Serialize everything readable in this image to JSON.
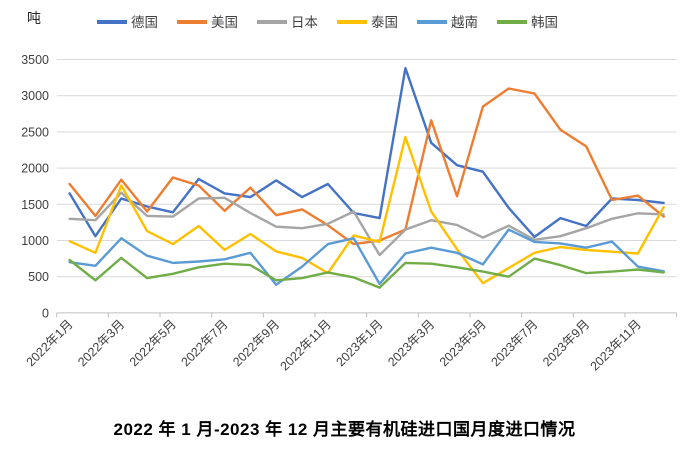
{
  "unit_label": "吨",
  "title": "2022 年 1 月-2023 年 12 月主要有机硅进口国月度进口情况",
  "chart_data": {
    "type": "line",
    "title": "2022 年 1 月-2023 年 12 月主要有机硅进口国月度进口情况",
    "ylabel": "吨",
    "ylim": [
      0,
      3500
    ],
    "y_step": 500,
    "grid": true,
    "legend_position": "top",
    "x_labels_every": 2,
    "categories": [
      "2022年1月",
      "2022年2月",
      "2022年3月",
      "2022年4月",
      "2022年5月",
      "2022年6月",
      "2022年7月",
      "2022年8月",
      "2022年9月",
      "2022年10月",
      "2022年11月",
      "2022年12月",
      "2023年1月",
      "2023年2月",
      "2023年3月",
      "2023年4月",
      "2023年5月",
      "2023年6月",
      "2023年7月",
      "2023年8月",
      "2023年9月",
      "2023年10月",
      "2023年11月",
      "2023年12月"
    ],
    "series": [
      {
        "id": "germany",
        "name": "德国",
        "color": "#4472C4",
        "values": [
          1650,
          1060,
          1580,
          1470,
          1390,
          1850,
          1650,
          1600,
          1830,
          1600,
          1780,
          1380,
          1310,
          3380,
          2350,
          2040,
          1950,
          1450,
          1050,
          1310,
          1200,
          1580,
          1560,
          1520
        ]
      },
      {
        "id": "usa",
        "name": "美国",
        "color": "#ED7D31",
        "values": [
          1780,
          1340,
          1840,
          1400,
          1870,
          1760,
          1410,
          1730,
          1350,
          1430,
          1210,
          950,
          1000,
          1150,
          2660,
          1610,
          2850,
          3100,
          3030,
          2530,
          2300,
          1560,
          1620,
          1330
        ]
      },
      {
        "id": "japan",
        "name": "日本",
        "color": "#A5A5A5",
        "values": [
          1300,
          1280,
          1660,
          1340,
          1330,
          1580,
          1590,
          1380,
          1190,
          1170,
          1230,
          1400,
          800,
          1150,
          1280,
          1215,
          1040,
          1205,
          1010,
          1060,
          1170,
          1300,
          1375,
          1360
        ]
      },
      {
        "id": "thailand",
        "name": "泰国",
        "color": "#FFC000",
        "values": [
          990,
          830,
          1760,
          1130,
          950,
          1200,
          870,
          1090,
          850,
          760,
          550,
          1070,
          980,
          2430,
          1400,
          880,
          410,
          620,
          830,
          910,
          870,
          845,
          820,
          1460
        ]
      },
      {
        "id": "vietnam",
        "name": "越南",
        "color": "#5B9BD5",
        "values": [
          700,
          650,
          1030,
          790,
          690,
          710,
          740,
          830,
          390,
          640,
          950,
          1030,
          400,
          820,
          900,
          830,
          670,
          1150,
          980,
          960,
          900,
          985,
          640,
          575
        ]
      },
      {
        "id": "korea",
        "name": "韩国",
        "color": "#70AD47",
        "values": [
          730,
          450,
          760,
          480,
          540,
          630,
          680,
          660,
          450,
          480,
          560,
          490,
          350,
          690,
          680,
          630,
          570,
          500,
          750,
          660,
          550,
          570,
          600,
          560
        ]
      }
    ],
    "axis_colors": {
      "grid": "#D9D9D9",
      "axis": "#BFBFBF",
      "tick_label": "#404040"
    }
  }
}
